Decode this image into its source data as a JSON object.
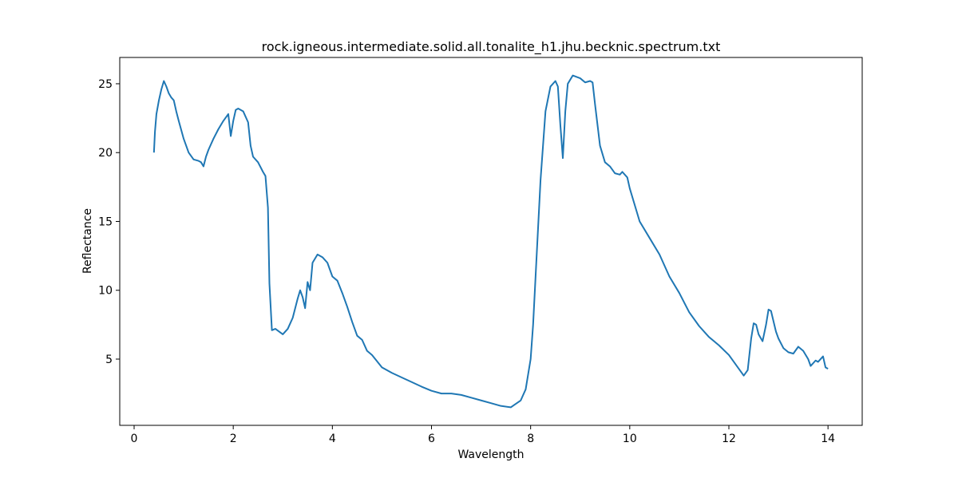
{
  "chart_data": {
    "type": "line",
    "title": "rock.igneous.intermediate.solid.all.tonalite_h1.jhu.becknic.spectrum.txt",
    "x_label": "Wavelength",
    "y_label": "Reflectance",
    "xlim": [
      -0.29,
      14.69
    ],
    "ylim": [
      0.19,
      26.91
    ],
    "xticks": [
      0,
      2,
      4,
      6,
      8,
      10,
      12,
      14
    ],
    "yticks": [
      5,
      10,
      15,
      20,
      25
    ],
    "series": [
      {
        "name": "spectrum",
        "color": "#1f77b4",
        "x": [
          0.4,
          0.42,
          0.45,
          0.5,
          0.55,
          0.6,
          0.65,
          0.7,
          0.75,
          0.8,
          0.85,
          0.9,
          1.0,
          1.1,
          1.2,
          1.3,
          1.35,
          1.4,
          1.45,
          1.5,
          1.6,
          1.7,
          1.8,
          1.9,
          1.95,
          2.0,
          2.05,
          2.1,
          2.2,
          2.3,
          2.35,
          2.4,
          2.5,
          2.6,
          2.65,
          2.7,
          2.73,
          2.78,
          2.85,
          3.0,
          3.1,
          3.2,
          3.3,
          3.35,
          3.4,
          3.45,
          3.5,
          3.55,
          3.6,
          3.7,
          3.8,
          3.9,
          4.0,
          4.1,
          4.2,
          4.3,
          4.4,
          4.5,
          4.6,
          4.7,
          4.8,
          5.0,
          5.2,
          5.5,
          5.8,
          6.0,
          6.2,
          6.4,
          6.6,
          6.8,
          7.0,
          7.2,
          7.4,
          7.6,
          7.8,
          7.9,
          8.0,
          8.05,
          8.1,
          8.2,
          8.3,
          8.4,
          8.5,
          8.55,
          8.6,
          8.65,
          8.7,
          8.75,
          8.85,
          9.0,
          9.1,
          9.2,
          9.25,
          9.3,
          9.4,
          9.5,
          9.6,
          9.7,
          9.8,
          9.85,
          9.95,
          10.0,
          10.2,
          10.4,
          10.6,
          10.8,
          11.0,
          11.2,
          11.4,
          11.6,
          11.8,
          12.0,
          12.1,
          12.2,
          12.3,
          12.38,
          12.45,
          12.5,
          12.55,
          12.6,
          12.68,
          12.75,
          12.8,
          12.85,
          12.95,
          13.0,
          13.1,
          13.2,
          13.3,
          13.4,
          13.5,
          13.6,
          13.65,
          13.75,
          13.8,
          13.9,
          13.95,
          14.0
        ],
        "values": [
          20.0,
          21.5,
          22.8,
          23.8,
          24.6,
          25.2,
          24.8,
          24.3,
          24.0,
          23.8,
          23.0,
          22.3,
          21.0,
          20.0,
          19.5,
          19.4,
          19.3,
          19.0,
          19.7,
          20.2,
          21.0,
          21.7,
          22.3,
          22.8,
          21.2,
          22.3,
          23.1,
          23.2,
          23.0,
          22.2,
          20.5,
          19.7,
          19.3,
          18.6,
          18.3,
          16.0,
          10.5,
          7.1,
          7.2,
          6.8,
          7.2,
          8.0,
          9.4,
          10.0,
          9.5,
          8.7,
          10.6,
          10.0,
          12.0,
          12.6,
          12.4,
          12.0,
          11.0,
          10.7,
          9.8,
          8.8,
          7.7,
          6.7,
          6.4,
          5.6,
          5.3,
          4.4,
          4.0,
          3.5,
          3.0,
          2.7,
          2.5,
          2.5,
          2.4,
          2.2,
          2.0,
          1.8,
          1.6,
          1.5,
          2.0,
          2.8,
          5.0,
          7.5,
          11.0,
          18.0,
          23.0,
          24.8,
          25.2,
          24.8,
          22.0,
          19.6,
          23.0,
          25.0,
          25.6,
          25.4,
          25.1,
          25.2,
          25.1,
          23.5,
          20.5,
          19.3,
          19.0,
          18.5,
          18.4,
          18.6,
          18.2,
          17.4,
          15.0,
          13.8,
          12.6,
          11.0,
          9.8,
          8.4,
          7.4,
          6.6,
          6.0,
          5.3,
          4.8,
          4.3,
          3.8,
          4.2,
          6.5,
          7.6,
          7.5,
          6.8,
          6.3,
          7.5,
          8.6,
          8.5,
          7.0,
          6.5,
          5.8,
          5.5,
          5.4,
          5.9,
          5.6,
          5.0,
          4.5,
          4.9,
          4.8,
          5.2,
          4.4,
          4.3
        ]
      }
    ]
  }
}
